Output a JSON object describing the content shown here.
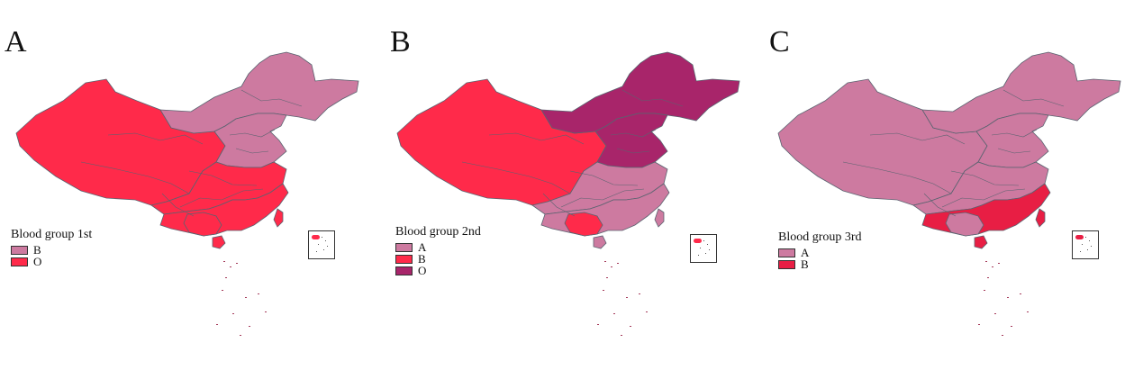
{
  "colors": {
    "group_A": "#cd7aa0",
    "group_B": "#ff2a4a",
    "group_O": "#a8256a",
    "border": "#5a6370"
  },
  "panels": [
    {
      "letter": "A",
      "legend_title": "Blood group 1st",
      "legend_items": [
        {
          "label": "B",
          "color": "#cd7aa0"
        },
        {
          "label": "O",
          "color": "#ff2a4a"
        }
      ],
      "regions": {
        "west": "O",
        "northeast": "B",
        "north_china": "B",
        "central": "O",
        "south": "O",
        "guangxi": "O",
        "hainan": "O",
        "taiwan": "O",
        "inset": "O"
      }
    },
    {
      "letter": "B",
      "legend_title": "Blood group 2nd",
      "legend_items": [
        {
          "label": "A",
          "color": "#cd7aa0"
        },
        {
          "label": "B",
          "color": "#ff2a4a"
        },
        {
          "label": "O",
          "color": "#a8256a"
        }
      ],
      "regions": {
        "west": "B",
        "northeast": "O",
        "north_china": "O",
        "central": "A",
        "south": "A",
        "guangxi": "B",
        "hainan": "A",
        "taiwan": "A",
        "inset": "B"
      }
    },
    {
      "letter": "C",
      "legend_title": "Blood group 3rd",
      "legend_items": [
        {
          "label": "A",
          "color": "#cd7aa0"
        },
        {
          "label": "B",
          "color": "#e81e44"
        }
      ],
      "regions": {
        "west": "A",
        "northeast": "A",
        "north_china": "A",
        "central": "A",
        "south": "B",
        "guangxi": "A",
        "hainan": "B",
        "taiwan": "B",
        "inset": "B"
      }
    }
  ]
}
